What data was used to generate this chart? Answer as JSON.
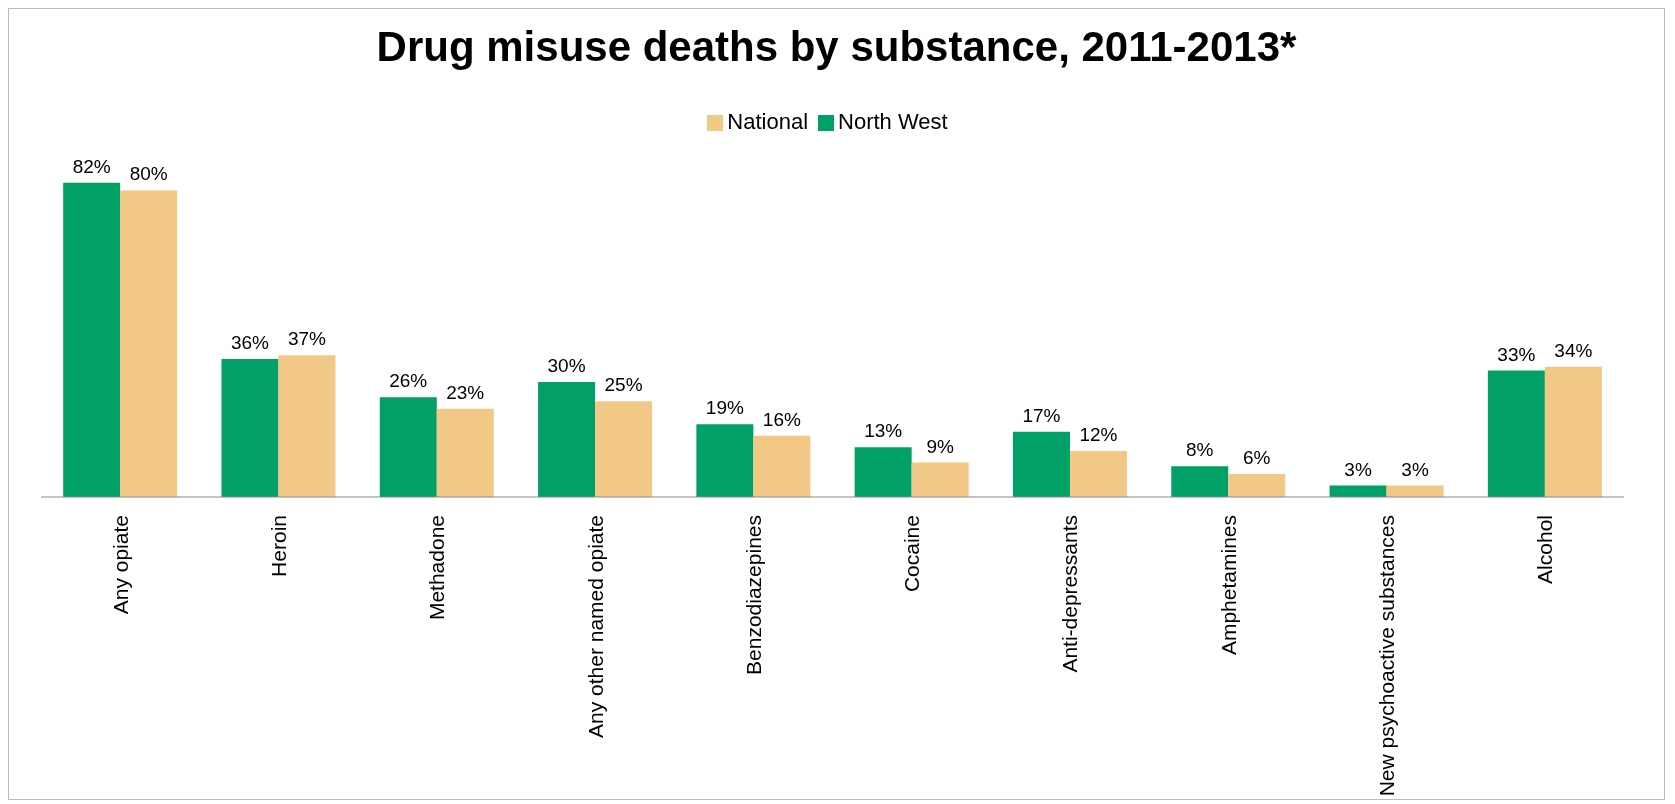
{
  "chart_data": {
    "type": "bar",
    "title": "Drug misuse deaths by substance, 2011-2013*",
    "categories": [
      "Any opiate",
      "Heroin",
      "Methadone",
      "Any other named opiate",
      "Benzodiazepines",
      "Cocaine",
      "Anti-depressants",
      "Amphetamines",
      "New psychoactive substances",
      "Alcohol"
    ],
    "series": [
      {
        "name": "North West",
        "color": "#00a066",
        "values": [
          82,
          36,
          26,
          30,
          19,
          13,
          17,
          8,
          3,
          33
        ],
        "value_labels": [
          "82%",
          "36%",
          "26%",
          "30%",
          "19%",
          "13%",
          "17%",
          "8%",
          "3%",
          "33%"
        ]
      },
      {
        "name": "National",
        "color": "#f2c886",
        "values": [
          80,
          37,
          23,
          25,
          16,
          9,
          12,
          6,
          3,
          34
        ],
        "value_labels": [
          "80%",
          "37%",
          "23%",
          "25%",
          "16%",
          "9%",
          "12%",
          "6%",
          "3%",
          "34%"
        ]
      }
    ],
    "legend": "top",
    "tick_labels": "x"
  }
}
